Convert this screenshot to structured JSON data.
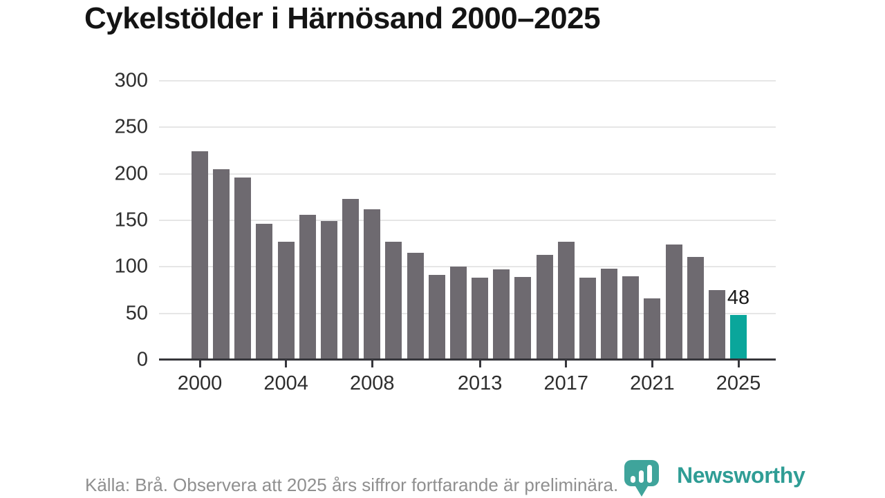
{
  "chart_data": {
    "type": "bar",
    "title": "Cykelstölder i Härnösand 2000–2025",
    "categories": [
      "2000",
      "2001",
      "2002",
      "2003",
      "2004",
      "2005",
      "2006",
      "2007",
      "2008",
      "2009",
      "2010",
      "2011",
      "2012",
      "2013",
      "2014",
      "2015",
      "2016",
      "2017",
      "2018",
      "2019",
      "2020",
      "2021",
      "2022",
      "2023",
      "2024",
      "2025"
    ],
    "values": [
      224,
      205,
      196,
      146,
      127,
      156,
      149,
      173,
      162,
      127,
      115,
      91,
      100,
      88,
      97,
      89,
      113,
      127,
      88,
      98,
      90,
      66,
      124,
      111,
      75,
      48
    ],
    "highlight_index": 25,
    "ylim": [
      0,
      300
    ],
    "yticks": [
      0,
      50,
      100,
      150,
      200,
      250,
      300
    ],
    "xticks": [
      {
        "index": 0,
        "label": "2000"
      },
      {
        "index": 4,
        "label": "2004"
      },
      {
        "index": 8,
        "label": "2008"
      },
      {
        "index": 13,
        "label": "2013"
      },
      {
        "index": 17,
        "label": "2017"
      },
      {
        "index": 21,
        "label": "2021"
      },
      {
        "index": 25,
        "label": "2025"
      }
    ],
    "annotations": [
      {
        "index": 25,
        "text": "48"
      }
    ],
    "grid": "horizontal",
    "legend": "none",
    "xlabel": "",
    "ylabel": ""
  },
  "colors": {
    "bar": "#6e6a70",
    "highlight": "#0aa69b",
    "gridline": "#e6e6e6",
    "axis_line": "#36363b",
    "axis_text": "#2e2e2e",
    "title_text": "#141414",
    "footer_text": "#8f8f8f",
    "logo_teal": "#2f9d95",
    "logo_icon_teal": "#3fa49b"
  },
  "footer": {
    "source_note": "Källa: Brå. Observera att 2025 års siffror fortfarande är preliminära.",
    "logo_text": "Newsworthy"
  }
}
